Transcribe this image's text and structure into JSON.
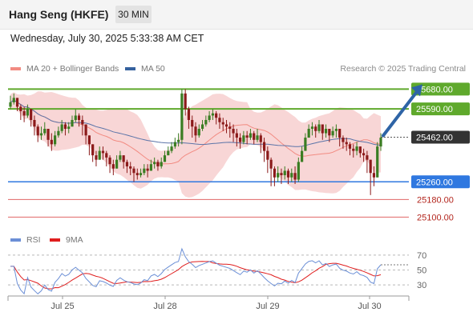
{
  "header": {
    "title": "Hang Seng (HKFE)",
    "timeframe": "30 MIN"
  },
  "datetime": "Wednesday, July 30, 2025 5:33:38 AM CET",
  "legend": {
    "items": [
      {
        "label": "MA 20 + Bollinger Bands",
        "color": "#f28b82"
      },
      {
        "label": "MA 50",
        "color": "#35619e"
      }
    ]
  },
  "credit": "Research © 2025 Trading Central",
  "rsi_legend": {
    "items": [
      {
        "label": "RSI",
        "color": "#6b8fd6"
      },
      {
        "label": "9MA",
        "color": "#e01e1e"
      }
    ]
  },
  "colors": {
    "up": "#3a7d22",
    "down": "#8b1a1a",
    "resistance": "#5fa92c",
    "support": "#2f78e0",
    "target_line": "#e06666",
    "bollinger_fill": "#f7cfcf",
    "arrow": "#2e64a6"
  },
  "chart_data": [
    {
      "type": "candlestick",
      "title": "",
      "x_ticks": [
        "Jul 25",
        "Jul 28",
        "Jul 29",
        "Jul 30"
      ],
      "y_range": [
        25040,
        25750
      ],
      "last_price": 25462.0,
      "levels": [
        {
          "value": 25680.0,
          "label": "25680.00",
          "kind": "resistance"
        },
        {
          "value": 25590.0,
          "label": "25590.00",
          "kind": "resistance"
        },
        {
          "value": 25462.0,
          "label": "25462.00",
          "kind": "current"
        },
        {
          "value": 25260.0,
          "label": "25260.00",
          "kind": "support"
        },
        {
          "value": 25180.0,
          "label": "25180.00",
          "kind": "target"
        },
        {
          "value": 25100.0,
          "label": "25100.00",
          "kind": "target"
        }
      ],
      "forecast_arrow": {
        "from": 25462,
        "to": 25680
      },
      "close": [
        25620,
        25640,
        25600,
        25580,
        25560,
        25590,
        25540,
        25510,
        25470,
        25480,
        25500,
        25450,
        25430,
        25470,
        25490,
        25520,
        25500,
        25510,
        25540,
        25560,
        25540,
        25520,
        25470,
        25430,
        25380,
        25360,
        25400,
        25390,
        25370,
        25340,
        25320,
        25360,
        25380,
        25350,
        25330,
        25320,
        25300,
        25290,
        25300,
        25320,
        25310,
        25340,
        25350,
        25330,
        25350,
        25380,
        25400,
        25420,
        25440,
        25450,
        25660,
        25590,
        25540,
        25510,
        25470,
        25500,
        25520,
        25540,
        25560,
        25570,
        25550,
        25530,
        25520,
        25510,
        25500,
        25480,
        25460,
        25440,
        25470,
        25460,
        25480,
        25450,
        25470,
        25440,
        25400,
        25360,
        25320,
        25280,
        25300,
        25290,
        25310,
        25280,
        25300,
        25270,
        25350,
        25400,
        25460,
        25500,
        25510,
        25490,
        25520,
        25480,
        25500,
        25470,
        25490,
        25500,
        25460,
        25440,
        25430,
        25410,
        25400,
        25420,
        25390,
        25380,
        25360,
        25300,
        25280,
        25420,
        25460
      ],
      "high": [
        25650,
        25660,
        25640,
        25610,
        25600,
        25610,
        25590,
        25560,
        25520,
        25510,
        25530,
        25500,
        25480,
        25490,
        25510,
        25540,
        25530,
        25530,
        25560,
        25590,
        25570,
        25560,
        25520,
        25470,
        25430,
        25400,
        25420,
        25420,
        25400,
        25380,
        25360,
        25380,
        25400,
        25380,
        25360,
        25350,
        25330,
        25320,
        25320,
        25340,
        25340,
        25360,
        25370,
        25360,
        25370,
        25400,
        25420,
        25440,
        25460,
        25480,
        25680,
        25680,
        25600,
        25560,
        25530,
        25520,
        25540,
        25560,
        25580,
        25590,
        25580,
        25570,
        25550,
        25540,
        25530,
        25520,
        25500,
        25480,
        25490,
        25490,
        25500,
        25490,
        25500,
        25480,
        25460,
        25420,
        25370,
        25330,
        25330,
        25320,
        25330,
        25320,
        25320,
        25330,
        25370,
        25420,
        25480,
        25520,
        25530,
        25520,
        25540,
        25520,
        25520,
        25500,
        25510,
        25520,
        25500,
        25470,
        25460,
        25440,
        25430,
        25440,
        25420,
        25410,
        25400,
        25360,
        25330,
        25440,
        25480
      ],
      "low": [
        25590,
        25610,
        25580,
        25540,
        25530,
        25550,
        25510,
        25470,
        25440,
        25450,
        25470,
        25420,
        25400,
        25420,
        25460,
        25480,
        25470,
        25480,
        25510,
        25530,
        25510,
        25470,
        25430,
        25380,
        25350,
        25330,
        25360,
        25360,
        25330,
        25300,
        25290,
        25320,
        25350,
        25320,
        25300,
        25290,
        25260,
        25270,
        25280,
        25290,
        25280,
        25310,
        25320,
        25310,
        25320,
        25350,
        25380,
        25390,
        25410,
        25420,
        25430,
        25560,
        25500,
        25460,
        25440,
        25460,
        25490,
        25510,
        25530,
        25540,
        25520,
        25500,
        25490,
        25480,
        25460,
        25440,
        25420,
        25410,
        25430,
        25430,
        25450,
        25430,
        25440,
        25390,
        25350,
        25300,
        25240,
        25240,
        25260,
        25250,
        25270,
        25250,
        25260,
        25250,
        25260,
        25350,
        25410,
        25460,
        25470,
        25460,
        25480,
        25450,
        25460,
        25440,
        25460,
        25460,
        25420,
        25410,
        25400,
        25380,
        25370,
        25380,
        25370,
        25350,
        25300,
        25200,
        25240,
        25280,
        25400
      ]
    },
    {
      "type": "line",
      "title": "",
      "series": [
        {
          "name": "RSI"
        },
        {
          "name": "9MA"
        }
      ],
      "y_ticks": [
        70,
        50,
        30
      ],
      "y_range": [
        15,
        85
      ],
      "last_value": 57
    }
  ]
}
